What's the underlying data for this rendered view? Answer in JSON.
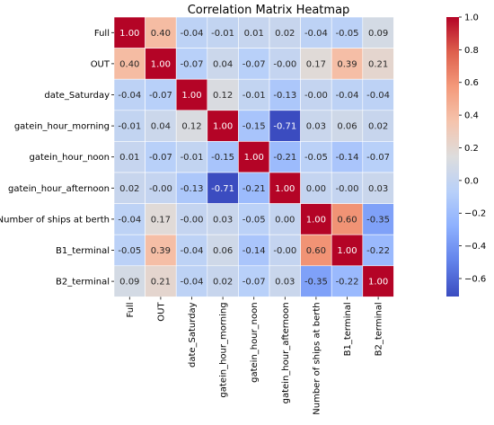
{
  "chart_data": {
    "type": "heatmap",
    "title": "Correlation Matrix Heatmap",
    "rows": [
      "Full",
      "OUT",
      "date_Saturday",
      "gatein_hour_morning",
      "gatein_hour_noon",
      "gatein_hour_afternoon",
      "Number of ships at berth",
      "B1_terminal",
      "B2_terminal"
    ],
    "columns": [
      "Full",
      "OUT",
      "date_Saturday",
      "gatein_hour_morning",
      "gatein_hour_noon",
      "gatein_hour_afternoon",
      "Number of ships at berth",
      "B1_terminal",
      "B2_terminal"
    ],
    "values": [
      [
        1.0,
        0.4,
        -0.04,
        -0.01,
        0.01,
        0.02,
        -0.04,
        -0.05,
        0.09
      ],
      [
        0.4,
        1.0,
        -0.07,
        0.04,
        -0.07,
        -0.0,
        0.17,
        0.39,
        0.21
      ],
      [
        -0.04,
        -0.07,
        1.0,
        0.12,
        -0.01,
        -0.13,
        -0.0,
        -0.04,
        -0.04
      ],
      [
        -0.01,
        0.04,
        0.12,
        1.0,
        -0.15,
        -0.71,
        0.03,
        0.06,
        0.02
      ],
      [
        0.01,
        -0.07,
        -0.01,
        -0.15,
        1.0,
        -0.21,
        -0.05,
        -0.14,
        -0.07
      ],
      [
        0.02,
        -0.0,
        -0.13,
        -0.71,
        -0.21,
        1.0,
        0.0,
        -0.0,
        0.03
      ],
      [
        -0.04,
        0.17,
        -0.0,
        0.03,
        -0.05,
        0.0,
        1.0,
        0.6,
        -0.35
      ],
      [
        -0.05,
        0.39,
        -0.04,
        0.06,
        -0.14,
        -0.0,
        0.6,
        1.0,
        -0.22
      ],
      [
        0.09,
        0.21,
        -0.04,
        0.02,
        -0.07,
        0.03,
        -0.35,
        -0.22,
        1.0
      ]
    ],
    "labels": [
      [
        "1.00",
        "0.40",
        "-0.04",
        "-0.01",
        "0.01",
        "0.02",
        "-0.04",
        "-0.05",
        "0.09"
      ],
      [
        "0.40",
        "1.00",
        "-0.07",
        "0.04",
        "-0.07",
        "-0.00",
        "0.17",
        "0.39",
        "0.21"
      ],
      [
        "-0.04",
        "-0.07",
        "1.00",
        "0.12",
        "-0.01",
        "-0.13",
        "-0.00",
        "-0.04",
        "-0.04"
      ],
      [
        "-0.01",
        "0.04",
        "0.12",
        "1.00",
        "-0.15",
        "-0.71",
        "0.03",
        "0.06",
        "0.02"
      ],
      [
        "0.01",
        "-0.07",
        "-0.01",
        "-0.15",
        "1.00",
        "-0.21",
        "-0.05",
        "-0.14",
        "-0.07"
      ],
      [
        "0.02",
        "-0.00",
        "-0.13",
        "-0.71",
        "-0.21",
        "1.00",
        "0.00",
        "-0.00",
        "0.03"
      ],
      [
        "-0.04",
        "0.17",
        "-0.00",
        "0.03",
        "-0.05",
        "0.00",
        "1.00",
        "0.60",
        "-0.35"
      ],
      [
        "-0.05",
        "0.39",
        "-0.04",
        "0.06",
        "-0.14",
        "-0.00",
        "0.60",
        "1.00",
        "-0.22"
      ],
      [
        "0.09",
        "0.21",
        "-0.04",
        "0.02",
        "-0.07",
        "0.03",
        "-0.35",
        "-0.22",
        "1.00"
      ]
    ],
    "colormap": "coolwarm",
    "vmin": -0.71,
    "vmax": 1.0,
    "colorbar_ticks": [
      1.0,
      0.8,
      0.6,
      0.4,
      0.2,
      0.0,
      -0.2,
      -0.4,
      -0.6
    ],
    "colorbar_tick_labels": [
      "1.0",
      "0.8",
      "0.6",
      "0.4",
      "0.2",
      "0.0",
      "−0.2",
      "−0.4",
      "−0.6"
    ],
    "legend": "colorbar-right"
  }
}
